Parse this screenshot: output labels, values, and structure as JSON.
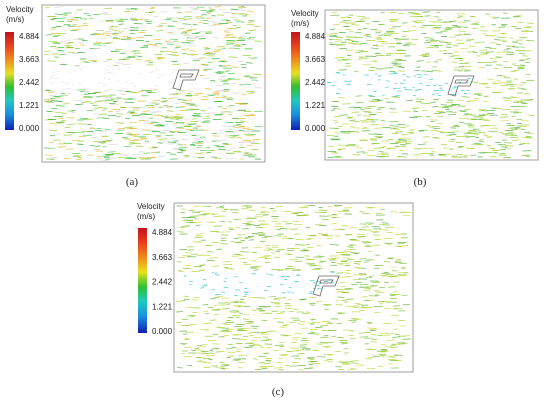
{
  "panels": [
    {
      "label": "(a)",
      "legend": {
        "title": [
          "Velocity",
          "(m/s)"
        ],
        "ticks": [
          "4.884",
          "3.663",
          "2.442",
          "1.221",
          "0.000"
        ]
      }
    },
    {
      "label": "(b)",
      "legend": {
        "title": [
          "Velocity",
          "(m/s)"
        ],
        "ticks": [
          "4.884",
          "3.663",
          "2.442",
          "1.221",
          "0.000"
        ]
      }
    },
    {
      "label": "(c)",
      "legend": {
        "title": [
          "Velocity",
          "(m/s)"
        ],
        "ticks": [
          "4.884",
          "3.663",
          "2.442",
          "1.221",
          "0.000"
        ]
      }
    }
  ]
}
